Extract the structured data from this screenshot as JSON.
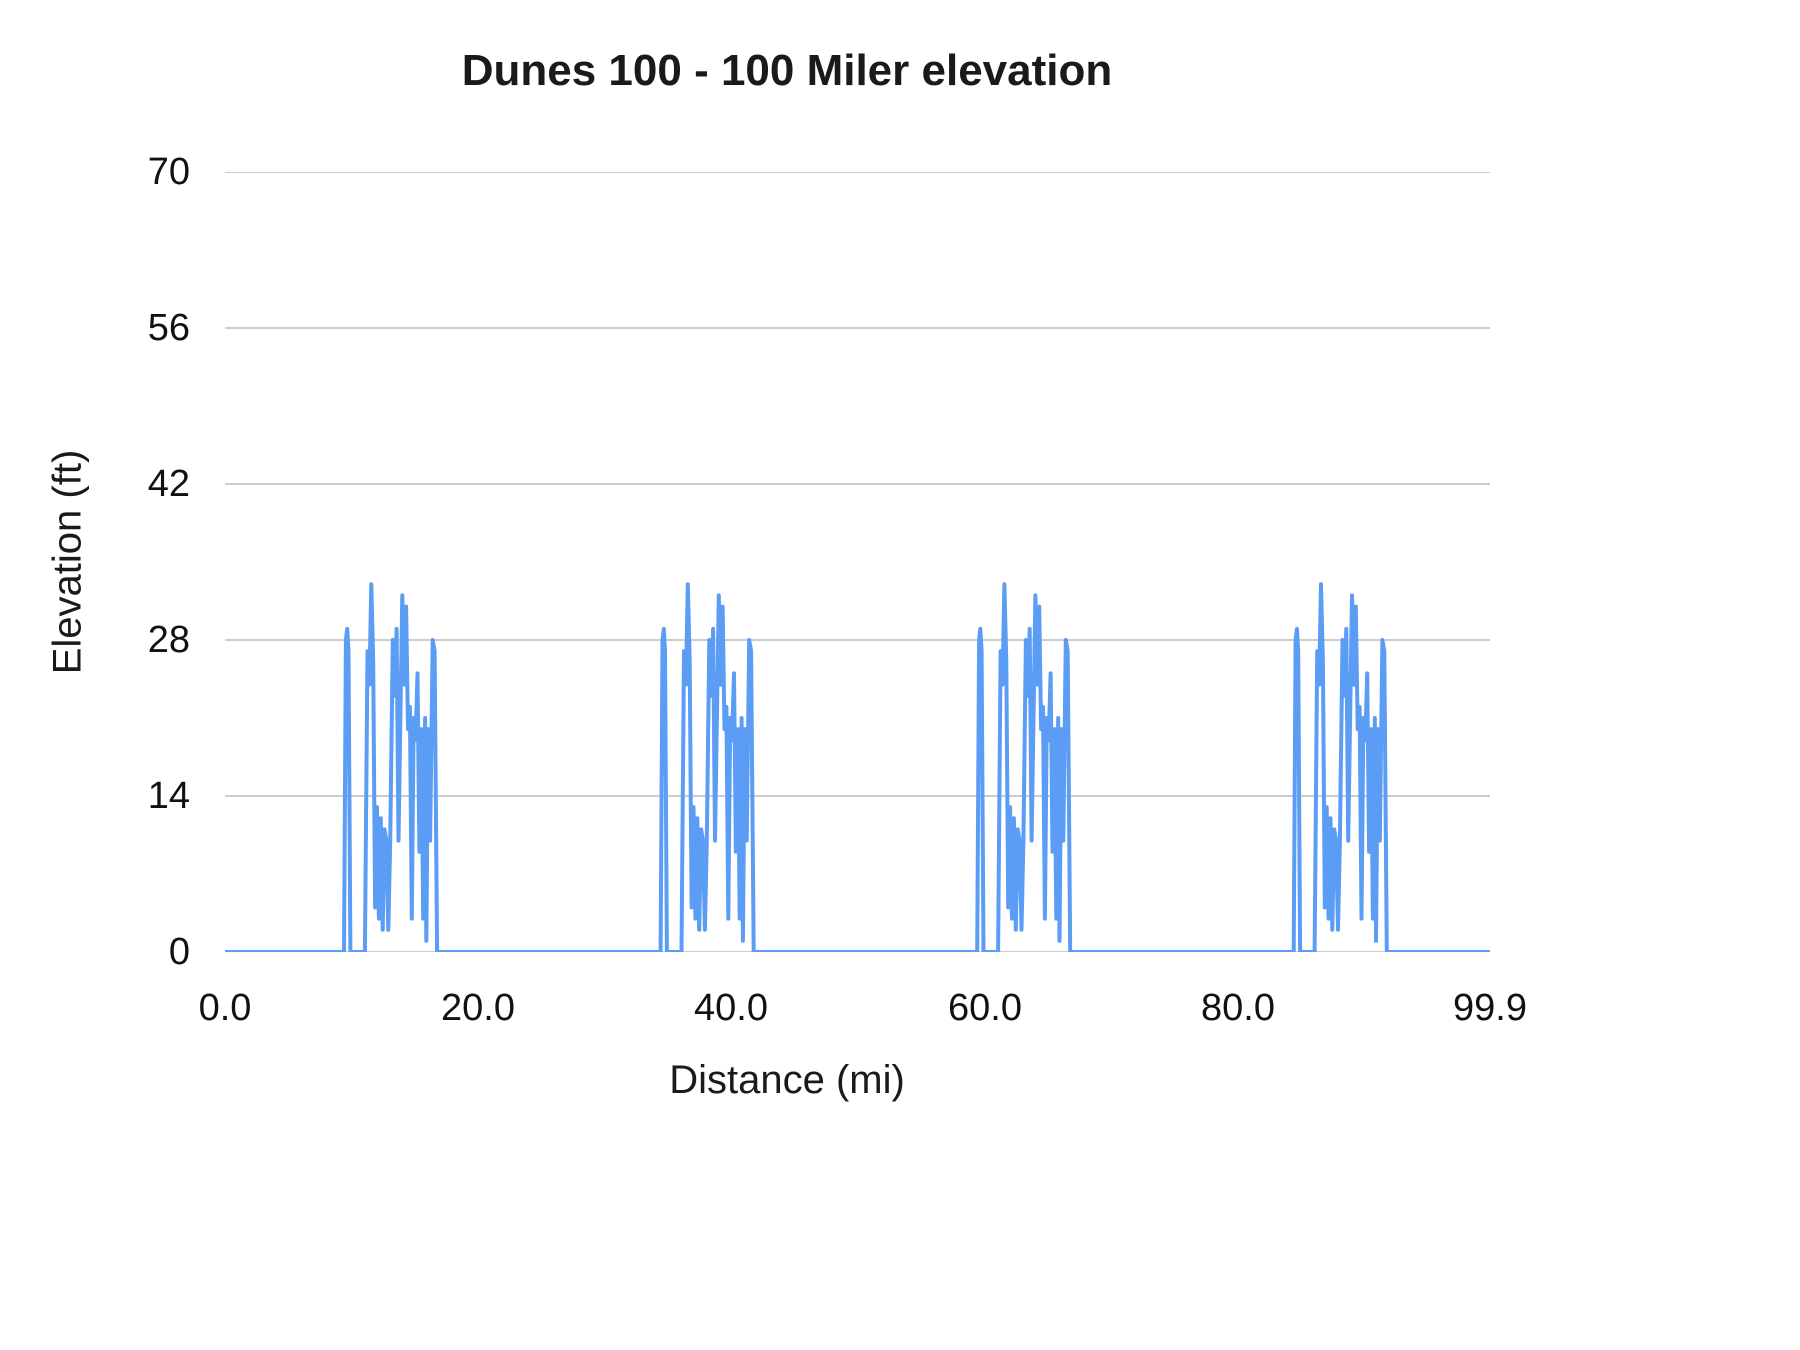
{
  "chart_data": {
    "type": "line",
    "title": "Dunes 100 - 100 Miler elevation",
    "xlabel": "Distance (mi)",
    "ylabel": "Elevation (ft)",
    "xlim": [
      0,
      99.9
    ],
    "ylim": [
      0,
      70
    ],
    "grid": "horizontal",
    "grid_color": "#cccccc",
    "line_color": "#5b9cf5",
    "legend": "none",
    "x_ticks": {
      "values": [
        0,
        20,
        40,
        60,
        80,
        99.9
      ],
      "labels": [
        "0.0",
        "20.0",
        "40.0",
        "60.0",
        "80.0",
        "99.9"
      ]
    },
    "y_ticks": {
      "values": [
        0,
        14,
        28,
        42,
        56,
        70
      ],
      "labels": [
        "0",
        "14",
        "28",
        "42",
        "56",
        "70"
      ]
    },
    "series": [
      {
        "name": "Elevation",
        "description": "Elevation is 0 ft except four identical dune clusters, one per 25-mile lap, spanning roughly miles 9.4-16.8 of each lap with spikes up to about 33 ft.",
        "lap_starts": [
          0,
          25,
          50,
          75
        ],
        "lap_profile": [
          [
            9.4,
            0
          ],
          [
            9.55,
            28
          ],
          [
            9.65,
            29
          ],
          [
            9.75,
            27
          ],
          [
            9.9,
            0
          ],
          [
            11.05,
            0
          ],
          [
            11.25,
            27
          ],
          [
            11.4,
            24
          ],
          [
            11.55,
            33
          ],
          [
            11.7,
            26
          ],
          [
            11.85,
            4
          ],
          [
            12.0,
            13
          ],
          [
            12.15,
            3
          ],
          [
            12.3,
            12
          ],
          [
            12.45,
            2
          ],
          [
            12.6,
            11
          ],
          [
            12.75,
            10
          ],
          [
            12.9,
            2
          ],
          [
            13.05,
            10
          ],
          [
            13.25,
            28
          ],
          [
            13.4,
            23
          ],
          [
            13.55,
            29
          ],
          [
            13.7,
            10
          ],
          [
            13.85,
            21
          ],
          [
            14.0,
            32
          ],
          [
            14.15,
            24
          ],
          [
            14.3,
            31
          ],
          [
            14.45,
            20
          ],
          [
            14.6,
            22
          ],
          [
            14.75,
            3
          ],
          [
            14.9,
            21
          ],
          [
            15.05,
            19
          ],
          [
            15.2,
            25
          ],
          [
            15.35,
            9
          ],
          [
            15.5,
            20
          ],
          [
            15.65,
            3
          ],
          [
            15.8,
            21
          ],
          [
            15.9,
            1
          ],
          [
            16.05,
            20
          ],
          [
            16.2,
            10
          ],
          [
            16.4,
            28
          ],
          [
            16.55,
            27
          ],
          [
            16.75,
            0
          ]
        ],
        "start_point": [
          0,
          0
        ],
        "end_point": [
          99.9,
          0
        ]
      }
    ]
  }
}
